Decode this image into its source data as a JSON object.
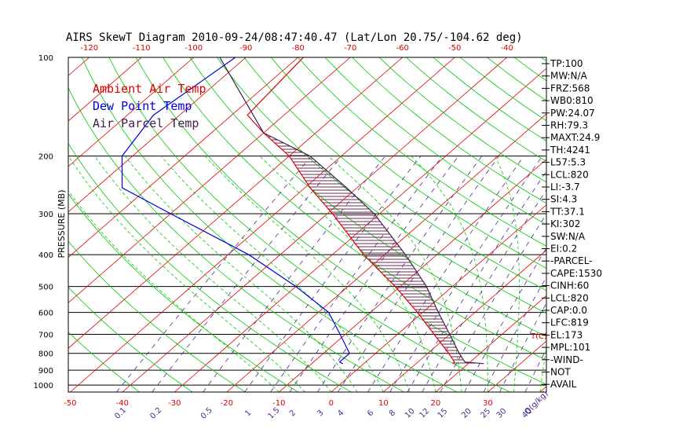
{
  "chart_data": {
    "type": "line",
    "title": "AIRS SkewT Diagram 2010-09-24/08:47:40.47 (Lat/Lon 20.75/-104.62 deg)",
    "ylabel": "PRESSURE (MB)",
    "pressure_ticks": [
      100,
      200,
      300,
      400,
      500,
      600,
      700,
      800,
      900,
      1000
    ],
    "bottom_temperature_ticks": [
      -50,
      -40,
      -30,
      -20,
      -10,
      0,
      10,
      20,
      30
    ],
    "top_temperature_ticks": [
      -120,
      -110,
      -100,
      -90,
      -80,
      -70,
      -60,
      -50,
      -40
    ],
    "t_unit_label": "T(C)",
    "mixing_ratio_ticks": [
      "0.1",
      "0.2",
      "0.5",
      "1",
      "1.5",
      "2",
      "3",
      "4",
      "6",
      "8",
      "10",
      "12",
      "15",
      "20",
      "25",
      "30",
      "40"
    ],
    "mixing_ratio_unit": "Q(g/kg)",
    "legend": [
      "Ambient Air Temp",
      "Dew Point Temp",
      "Air Parcel Temp"
    ],
    "legend_placement": "top-left",
    "colors": {
      "ambient": "#e00000",
      "dewpoint": "#0000e0",
      "parcel": "#40204a",
      "dry_adiabat": "#00c800",
      "moist_adiabat": "#00c800",
      "mixing_ratio": "#4a2a8a",
      "isotherm": "#e00000",
      "isobar": "#000000",
      "hatch": "#6a2a50"
    },
    "series": [
      {
        "name": "Ambient Air Temp",
        "points": [
          [
            100,
            -79
          ],
          [
            150,
            -77
          ],
          [
            170,
            -70
          ],
          [
            200,
            -60
          ],
          [
            250,
            -49
          ],
          [
            300,
            -39
          ],
          [
            400,
            -24
          ],
          [
            500,
            -11
          ],
          [
            600,
            -1
          ],
          [
            700,
            7
          ],
          [
            800,
            14
          ],
          [
            850,
            17
          ],
          [
            860,
            17
          ]
        ]
      },
      {
        "name": "Dew Point Temp",
        "points": [
          [
            100,
            -92
          ],
          [
            150,
            -95
          ],
          [
            200,
            -92
          ],
          [
            250,
            -85
          ],
          [
            300,
            -70
          ],
          [
            400,
            -46
          ],
          [
            500,
            -30
          ],
          [
            600,
            -18
          ],
          [
            700,
            -11
          ],
          [
            800,
            -5
          ],
          [
            850,
            -5
          ],
          [
            860,
            -4
          ]
        ]
      },
      {
        "name": "Air Parcel Temp",
        "points": [
          [
            100,
            -95
          ],
          [
            170,
            -70
          ],
          [
            200,
            -56
          ],
          [
            250,
            -42
          ],
          [
            300,
            -31
          ],
          [
            400,
            -16
          ],
          [
            500,
            -5
          ],
          [
            600,
            3
          ],
          [
            700,
            10
          ],
          [
            800,
            16
          ],
          [
            850,
            19
          ],
          [
            860,
            23
          ]
        ]
      }
    ],
    "wind_profile_available": false
  },
  "indices": [
    "TP:100",
    "MW:N/A",
    "FRZ:568",
    "WB0:810",
    "PW:24.07",
    "RH:79.3",
    "MAXT:24.9",
    "TH:4241",
    "L57:5.3",
    "LCL:820",
    "LI:-3.7",
    "SI:4.3",
    "TT:37.1",
    "KI:302",
    "SW:N/A",
    "EI:0.2",
    "-PARCEL-",
    "CAPE:1530",
    "CINH:60",
    "LCL:820",
    "CAP:0.0",
    "LFC:819",
    "EL:173",
    "MPL:101",
    "-WIND-",
    "NOT",
    "AVAIL"
  ]
}
